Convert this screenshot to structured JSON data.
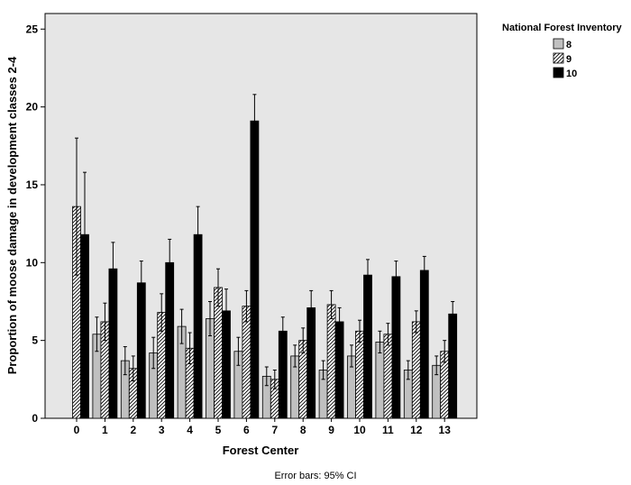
{
  "chart_data": {
    "type": "bar",
    "title": "",
    "xlabel": "Forest Center",
    "ylabel": "Proportion of moose damage in development classes 2-4",
    "ylim": [
      0,
      26
    ],
    "yticks": [
      0,
      5,
      10,
      15,
      20,
      25
    ],
    "categories": [
      "0",
      "1",
      "2",
      "3",
      "4",
      "5",
      "6",
      "7",
      "8",
      "9",
      "10",
      "11",
      "12",
      "13"
    ],
    "legend_title": "National Forest Inventory",
    "legend_position": "top-right, outside plot",
    "footnote": "Error bars: 95% CI",
    "grid": false,
    "series": [
      {
        "name": "8",
        "pattern": "solid-gray",
        "color": "#c0c0c0",
        "values": [
          null,
          5.4,
          3.7,
          4.2,
          5.9,
          6.4,
          4.3,
          2.7,
          4.0,
          3.1,
          4.0,
          4.9,
          3.1,
          3.4
        ],
        "ci_upper": [
          null,
          6.5,
          4.6,
          5.2,
          7.0,
          7.5,
          5.2,
          3.3,
          4.7,
          3.7,
          4.7,
          5.6,
          3.7,
          4.0
        ],
        "ci_lower": [
          null,
          4.3,
          2.8,
          3.2,
          4.8,
          5.3,
          3.4,
          2.1,
          3.3,
          2.5,
          3.3,
          4.2,
          2.5,
          2.8
        ]
      },
      {
        "name": "9",
        "pattern": "diagonal-hatch",
        "color": "#000000",
        "values": [
          13.6,
          6.2,
          3.2,
          6.8,
          4.5,
          8.4,
          7.2,
          2.5,
          5.0,
          7.3,
          5.6,
          5.4,
          6.2,
          4.3
        ],
        "ci_upper": [
          18.0,
          7.4,
          4.0,
          8.0,
          5.5,
          9.6,
          8.2,
          3.1,
          5.8,
          8.2,
          6.3,
          6.1,
          6.9,
          5.0
        ],
        "ci_lower": [
          9.2,
          5.0,
          2.4,
          5.6,
          3.5,
          7.2,
          6.2,
          1.9,
          4.2,
          6.4,
          4.9,
          4.7,
          5.5,
          3.6
        ]
      },
      {
        "name": "10",
        "pattern": "solid-black",
        "color": "#000000",
        "values": [
          11.8,
          9.6,
          8.7,
          10.0,
          11.8,
          6.9,
          19.1,
          5.6,
          7.1,
          6.2,
          9.2,
          9.1,
          9.5,
          6.7
        ],
        "ci_upper": [
          15.8,
          11.3,
          10.1,
          11.5,
          13.6,
          8.3,
          20.8,
          6.5,
          8.2,
          7.1,
          10.2,
          10.1,
          10.4,
          7.5
        ],
        "ci_lower": [
          7.8,
          7.9,
          7.3,
          8.5,
          10.0,
          5.5,
          17.4,
          4.7,
          6.0,
          5.3,
          8.2,
          8.1,
          8.6,
          5.9
        ]
      }
    ]
  }
}
